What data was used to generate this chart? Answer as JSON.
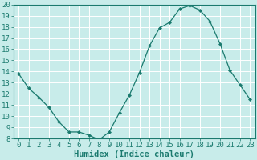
{
  "x": [
    0,
    1,
    2,
    3,
    4,
    5,
    6,
    7,
    8,
    9,
    10,
    11,
    12,
    13,
    14,
    15,
    16,
    17,
    18,
    19,
    20,
    21,
    22,
    23
  ],
  "y": [
    13.8,
    12.5,
    11.7,
    10.8,
    9.5,
    8.6,
    8.6,
    8.3,
    7.9,
    8.6,
    10.3,
    11.9,
    13.9,
    16.3,
    17.9,
    18.4,
    19.6,
    19.9,
    19.5,
    18.5,
    16.5,
    14.1,
    12.8,
    11.5
  ],
  "line_color": "#1a7a6e",
  "marker": "D",
  "marker_size": 2.2,
  "bg_color": "#c8ecea",
  "grid_color": "#ffffff",
  "tick_color": "#1a7a6e",
  "xlabel": "Humidex (Indice chaleur)",
  "ylim": [
    8,
    20
  ],
  "xlim": [
    -0.5,
    23.5
  ],
  "yticks": [
    8,
    9,
    10,
    11,
    12,
    13,
    14,
    15,
    16,
    17,
    18,
    19,
    20
  ],
  "xticks": [
    0,
    1,
    2,
    3,
    4,
    5,
    6,
    7,
    8,
    9,
    10,
    11,
    12,
    13,
    14,
    15,
    16,
    17,
    18,
    19,
    20,
    21,
    22,
    23
  ],
  "xlabel_fontsize": 7.5,
  "tick_fontsize": 6.5
}
